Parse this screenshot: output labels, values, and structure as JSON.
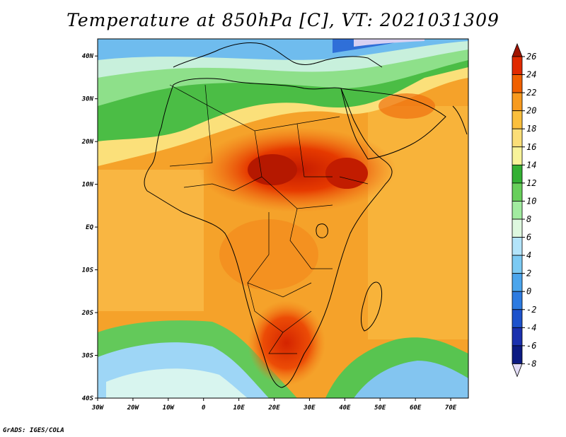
{
  "title": "Temperature at 850hPa [C], VT: 2021031309",
  "credit": "GrADS: IGES/COLA",
  "map": {
    "lon_labels": [
      "30W",
      "20W",
      "10W",
      "0",
      "10E",
      "20E",
      "30E",
      "40E",
      "50E",
      "60E",
      "70E"
    ],
    "lat_labels": [
      "40N",
      "30N",
      "20N",
      "10N",
      "EQ",
      "10S",
      "20S",
      "30S",
      "40S"
    ],
    "lon_range": [
      -30,
      75
    ],
    "lat_range": [
      -40,
      44
    ]
  },
  "colorbar": {
    "labels": [
      "26",
      "24",
      "22",
      "20",
      "18",
      "16",
      "14",
      "12",
      "10",
      "8",
      "6",
      "4",
      "2",
      "0",
      "-2",
      "-4",
      "-6",
      "-8"
    ],
    "colors": [
      "#a01400",
      "#e02a00",
      "#f06000",
      "#f79a1e",
      "#fbbf3c",
      "#fbde78",
      "#f8f39a",
      "#34b034",
      "#68cf5b",
      "#a2eba0",
      "#def8df",
      "#b3e4fa",
      "#7ccaf3",
      "#4ba5ec",
      "#2d7be1",
      "#1d52cc",
      "#1a30ae",
      "#0c1a82",
      "#e2dcf6"
    ]
  }
}
